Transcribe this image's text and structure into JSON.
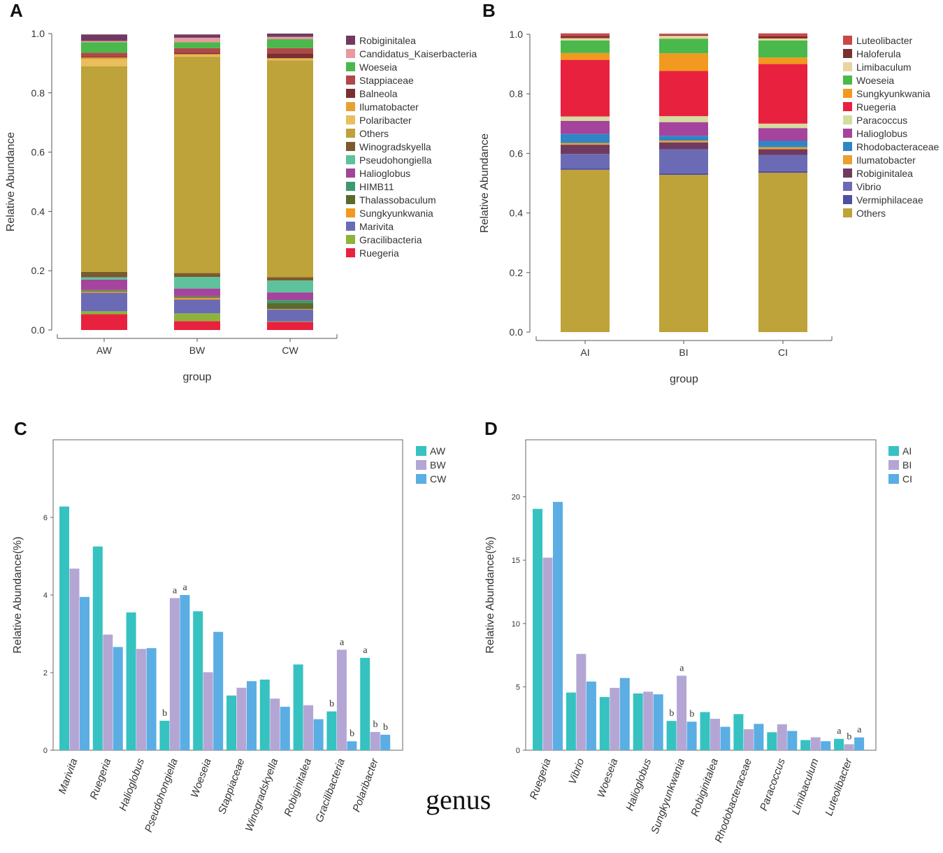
{
  "panel_labels": [
    "A",
    "B",
    "C",
    "D"
  ],
  "genus_label": "genus",
  "chart_data": [
    {
      "id": "A",
      "type": "stacked-bar",
      "xlabel": "group",
      "ylabel": "Relative Abundance",
      "ylim": [
        0,
        1.0
      ],
      "yticks": [
        "0.0",
        "0.2",
        "0.4",
        "0.6",
        "0.8",
        "1.0"
      ],
      "categories": [
        "AW",
        "BW",
        "CW"
      ],
      "legend": [
        "Robiginitalea",
        "Candidatus_Kaiserbacteria",
        "Woeseia",
        "Stappiaceae",
        "Balneola",
        "Ilumatobacter",
        "Polaribacter",
        "Others",
        "Winogradskyella",
        "Pseudohongiella",
        "Halioglobus",
        "HIMB11",
        "Thalassobaculum",
        "Sungkyunkwania",
        "Marivita",
        "Gracilibacteria",
        "Ruegeria"
      ],
      "series": [
        {
          "name": "Ruegeria",
          "color": "#e8213f",
          "values": [
            0.053,
            0.03,
            0.027
          ]
        },
        {
          "name": "Gracilibacteria",
          "color": "#8db33a",
          "values": [
            0.01,
            0.026,
            0.002
          ]
        },
        {
          "name": "Marivita",
          "color": "#6b6bb5",
          "values": [
            0.063,
            0.047,
            0.04
          ]
        },
        {
          "name": "Sungkyunkwania",
          "color": "#f19a1f",
          "values": [
            0.004,
            0.006,
            0.002
          ]
        },
        {
          "name": "Thalassobaculum",
          "color": "#5a6a2e",
          "values": [
            0.003,
            0.003,
            0.02
          ]
        },
        {
          "name": "HIMB11",
          "color": "#3e9a6e",
          "values": [
            0.002,
            0.002,
            0.01
          ]
        },
        {
          "name": "Halioglobus",
          "color": "#a4449c",
          "values": [
            0.035,
            0.026,
            0.026
          ]
        },
        {
          "name": "Pseudohongiella",
          "color": "#5ec39c",
          "values": [
            0.008,
            0.039,
            0.04
          ]
        },
        {
          "name": "Winogradskyella",
          "color": "#7a5a2e",
          "values": [
            0.018,
            0.013,
            0.011
          ]
        },
        {
          "name": "Others",
          "color": "#bea23a",
          "values": [
            0.694,
            0.73,
            0.732
          ]
        },
        {
          "name": "Polaribacter",
          "color": "#e8bf5c",
          "values": [
            0.024,
            0.005,
            0.004
          ]
        },
        {
          "name": "Ilumatobacter",
          "color": "#e8a030",
          "values": [
            0.005,
            0.004,
            0.003
          ]
        },
        {
          "name": "Balneola",
          "color": "#7a3030",
          "values": [
            0.002,
            0.004,
            0.016
          ]
        },
        {
          "name": "Stappiaceae",
          "color": "#b04848",
          "values": [
            0.014,
            0.016,
            0.018
          ]
        },
        {
          "name": "Woeseia",
          "color": "#4ab84a",
          "values": [
            0.036,
            0.02,
            0.03
          ]
        },
        {
          "name": "Candidatus_Kaiserbacteria",
          "color": "#e89aa0",
          "values": [
            0.004,
            0.015,
            0.008
          ]
        },
        {
          "name": "Robiginitalea",
          "color": "#703a60",
          "values": [
            0.022,
            0.011,
            0.011
          ]
        }
      ]
    },
    {
      "id": "B",
      "type": "stacked-bar",
      "xlabel": "group",
      "ylabel": "Relative Abundance",
      "ylim": [
        0,
        1.0
      ],
      "yticks": [
        "0.0",
        "0.2",
        "0.4",
        "0.6",
        "0.8",
        "1.0"
      ],
      "categories": [
        "AI",
        "BI",
        "CI"
      ],
      "legend": [
        "Luteolibacter",
        "Haloferula",
        "Limibaculum",
        "Woeseia",
        "Sungkyunkwania",
        "Ruegeria",
        "Paracoccus",
        "Halioglobus",
        "Rhodobacteraceae",
        "Ilumatobacter",
        "Robiginitalea",
        "Vibrio",
        "Vermiphilaceae",
        "Others"
      ],
      "series": [
        {
          "name": "Others",
          "color": "#bea23a",
          "values": [
            0.545,
            0.528,
            0.535
          ]
        },
        {
          "name": "Vermiphilaceae",
          "color": "#4e50a0",
          "values": [
            0.006,
            0.005,
            0.005
          ]
        },
        {
          "name": "Vibrio",
          "color": "#6b6bb5",
          "values": [
            0.047,
            0.081,
            0.055
          ]
        },
        {
          "name": "Robiginitalea",
          "color": "#703a60",
          "values": [
            0.031,
            0.023,
            0.019
          ]
        },
        {
          "name": "Ilumatobacter",
          "color": "#e8a030",
          "values": [
            0.006,
            0.006,
            0.007
          ]
        },
        {
          "name": "Rhodobacteraceae",
          "color": "#2f86c6",
          "values": [
            0.03,
            0.016,
            0.021
          ]
        },
        {
          "name": "Halioglobus",
          "color": "#a4449c",
          "values": [
            0.044,
            0.046,
            0.043
          ]
        },
        {
          "name": "Paracoccus",
          "color": "#d6dca0",
          "values": [
            0.015,
            0.02,
            0.015
          ]
        },
        {
          "name": "Ruegeria",
          "color": "#e8213f",
          "values": [
            0.19,
            0.152,
            0.2
          ]
        },
        {
          "name": "Sungkyunkwania",
          "color": "#f19a1f",
          "values": [
            0.023,
            0.059,
            0.022
          ]
        },
        {
          "name": "Woeseia",
          "color": "#4ab84a",
          "values": [
            0.042,
            0.049,
            0.057
          ]
        },
        {
          "name": "Limibaculum",
          "color": "#e8d4a0",
          "values": [
            0.008,
            0.01,
            0.007
          ]
        },
        {
          "name": "Haloferula",
          "color": "#7a3030",
          "values": [
            0.007,
            0.003,
            0.007
          ]
        },
        {
          "name": "Luteolibacter",
          "color": "#c84848",
          "values": [
            0.009,
            0.004,
            0.01
          ]
        }
      ]
    },
    {
      "id": "C",
      "type": "bar",
      "xlabel": "genus",
      "ylabel": "Relative Abundance(%)",
      "ylim": [
        0,
        8
      ],
      "yticks": [
        0,
        2,
        4,
        6
      ],
      "categories": [
        "Marivita",
        "Ruegeria",
        "Halioglobus",
        "Pseudohongiella",
        "Woeseia",
        "Stappiaceae",
        "Winogradskyella",
        "Robiginitalea",
        "Gracilibacteria",
        "Polaribacter"
      ],
      "series": [
        {
          "name": "AW",
          "color": "#36c2c0",
          "values": [
            6.28,
            5.25,
            3.55,
            0.76,
            3.58,
            1.41,
            1.82,
            2.21,
            1.0,
            2.38
          ]
        },
        {
          "name": "BW",
          "color": "#b4a6d4",
          "values": [
            4.68,
            2.98,
            2.61,
            3.92,
            2.01,
            1.61,
            1.33,
            1.16,
            2.59,
            0.47
          ]
        },
        {
          "name": "CW",
          "color": "#5aaee4",
          "values": [
            3.95,
            2.66,
            2.63,
            4.0,
            3.05,
            1.78,
            1.12,
            0.8,
            0.23,
            0.4
          ]
        }
      ],
      "annotations": [
        {
          "category": "Pseudohongiella",
          "series": "AW",
          "text": "b"
        },
        {
          "category": "Pseudohongiella",
          "series": "BW",
          "text": "a"
        },
        {
          "category": "Pseudohongiella",
          "series": "CW",
          "text": "a"
        },
        {
          "category": "Gracilibacteria",
          "series": "AW",
          "text": "b"
        },
        {
          "category": "Gracilibacteria",
          "series": "BW",
          "text": "a"
        },
        {
          "category": "Gracilibacteria",
          "series": "CW",
          "text": "b"
        },
        {
          "category": "Polaribacter",
          "series": "AW",
          "text": "a"
        },
        {
          "category": "Polaribacter",
          "series": "BW",
          "text": "b"
        },
        {
          "category": "Polaribacter",
          "series": "CW",
          "text": "b"
        }
      ]
    },
    {
      "id": "D",
      "type": "bar",
      "xlabel": "",
      "ylabel": "Relative Abundance(%)",
      "ylim": [
        0,
        24.5
      ],
      "yticks": [
        0,
        5,
        10,
        15,
        20
      ],
      "categories": [
        "Ruegeria",
        "Vibrio",
        "Woeseia",
        "Halioglobus",
        "Sungkyunkwania",
        "Robiginitalea",
        "Rhodobacteraceae",
        "Paracoccus",
        "Limibaculum",
        "Luteolibacter"
      ],
      "series": [
        {
          "name": "AI",
          "color": "#36c2c0",
          "values": [
            19.05,
            4.55,
            4.2,
            4.48,
            2.31,
            3.01,
            2.85,
            1.42,
            0.8,
            0.9
          ]
        },
        {
          "name": "BI",
          "color": "#b4a6d4",
          "values": [
            15.2,
            7.6,
            4.92,
            4.62,
            5.88,
            2.48,
            1.66,
            2.05,
            1.02,
            0.47
          ]
        },
        {
          "name": "CI",
          "color": "#5aaee4",
          "values": [
            19.6,
            5.42,
            5.7,
            4.41,
            2.25,
            1.85,
            2.08,
            1.52,
            0.71,
            1.01
          ]
        }
      ],
      "annotations": [
        {
          "category": "Sungkyunkwania",
          "series": "AI",
          "text": "b"
        },
        {
          "category": "Sungkyunkwania",
          "series": "BI",
          "text": "a"
        },
        {
          "category": "Sungkyunkwania",
          "series": "CI",
          "text": "b"
        },
        {
          "category": "Luteolibacter",
          "series": "AI",
          "text": "a"
        },
        {
          "category": "Luteolibacter",
          "series": "BI",
          "text": "b"
        },
        {
          "category": "Luteolibacter",
          "series": "CI",
          "text": "a"
        }
      ]
    }
  ]
}
